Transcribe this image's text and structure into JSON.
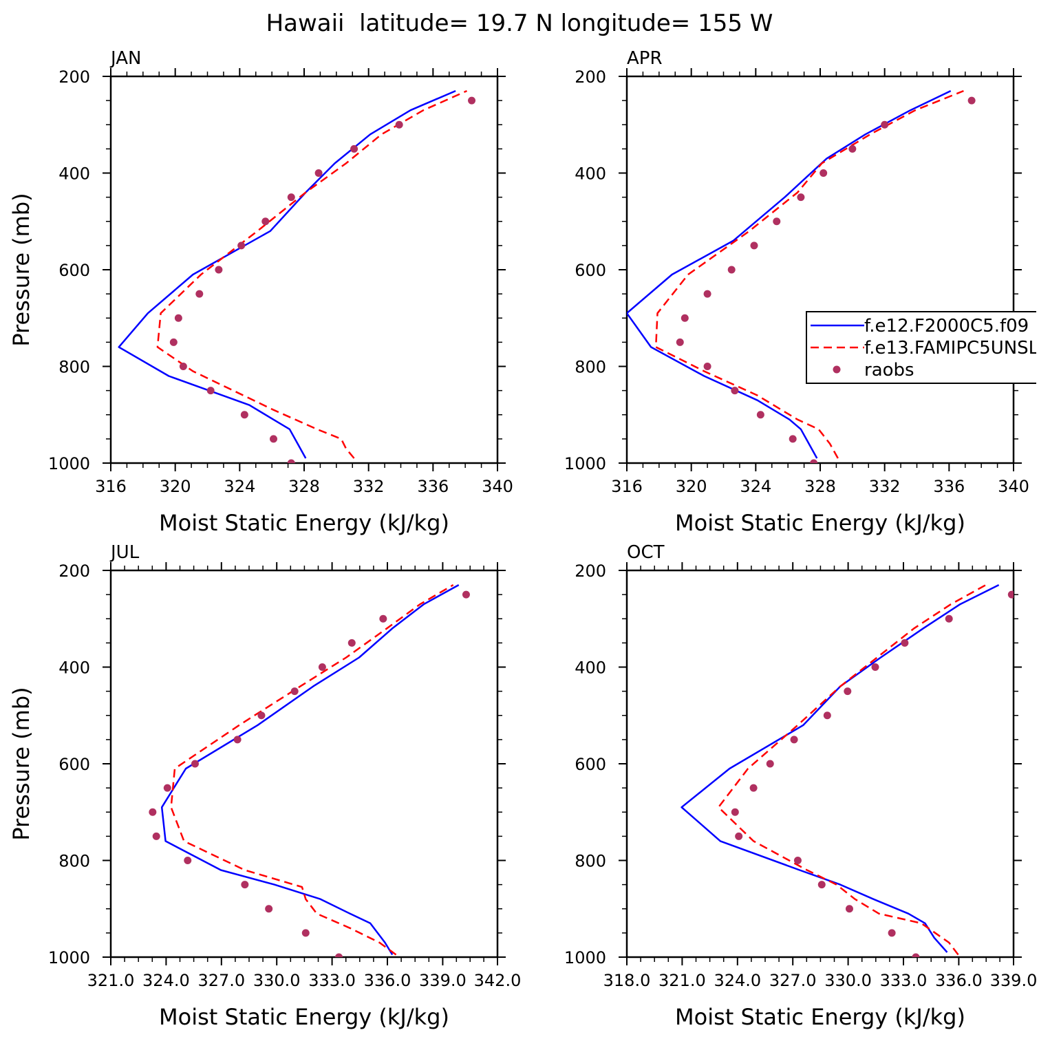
{
  "title": "Hawaii  latitude= 19.7 N longitude= 155 W",
  "legend": [
    {
      "label": "f.e12.F2000C5.f09",
      "color": "#0000ff",
      "dashed": false
    },
    {
      "label": "f.e13.FAMIPC5UNSL",
      "color": "#ff0000",
      "dashed": true
    },
    {
      "label": "raobs",
      "color": "#b03060",
      "dashed": false
    }
  ],
  "chart_data": [
    {
      "type": "line",
      "panel": "JAN",
      "xlabel": "Moist Static Energy (kJ/kg)",
      "ylabel": "Pressure (mb)",
      "xlim": [
        316,
        340
      ],
      "ylim": [
        1000,
        200
      ],
      "xticks": [
        316,
        320,
        324,
        328,
        332,
        336,
        340
      ],
      "xticklabels": [
        "316",
        "320",
        "324",
        "328",
        "332",
        "336",
        "340"
      ],
      "yticks": [
        200,
        400,
        600,
        800,
        1000
      ],
      "yticklabels": [
        "200",
        "400",
        "600",
        "800",
        "1000"
      ],
      "series": [
        {
          "name": "f.e12.F2000C5.f09",
          "style": "solid",
          "y": [
            990,
            960,
            930,
            910,
            880,
            850,
            820,
            760,
            690,
            610,
            520,
            440,
            380,
            320,
            270,
            230
          ],
          "values": [
            328.1,
            327.6,
            327.1,
            326.1,
            324.6,
            322.1,
            319.6,
            316.5,
            318.3,
            321.1,
            325.9,
            328.1,
            329.9,
            332.1,
            334.6,
            337.4
          ]
        },
        {
          "name": "f.e13.FAMIPC5UNSL",
          "style": "dashed",
          "y": [
            990,
            970,
            950,
            930,
            890,
            850,
            810,
            760,
            690,
            610,
            520,
            440,
            380,
            320,
            270,
            230
          ],
          "values": [
            331.1,
            330.6,
            330.3,
            328.8,
            326.1,
            323.6,
            321.1,
            318.9,
            319.1,
            321.6,
            325.1,
            328.1,
            330.6,
            332.8,
            335.4,
            338.1
          ]
        },
        {
          "name": "raobs",
          "style": "markers",
          "y": [
            1000,
            950,
            900,
            850,
            800,
            750,
            700,
            650,
            600,
            550,
            500,
            450,
            400,
            350,
            300,
            250
          ],
          "values": [
            327.2,
            326.1,
            324.3,
            322.2,
            320.5,
            319.9,
            320.2,
            321.5,
            322.7,
            324.1,
            325.6,
            327.2,
            328.9,
            331.1,
            333.9,
            338.4
          ]
        }
      ]
    },
    {
      "type": "line",
      "panel": "APR",
      "xlabel": "Moist Static Energy (kJ/kg)",
      "ylabel": "Pressure (mb)",
      "xlim": [
        316,
        340
      ],
      "ylim": [
        1000,
        200
      ],
      "xticks": [
        316,
        320,
        324,
        328,
        332,
        336,
        340
      ],
      "xticklabels": [
        "316",
        "320",
        "324",
        "328",
        "332",
        "336",
        "340"
      ],
      "yticks": [
        200,
        400,
        600,
        800,
        1000
      ],
      "yticklabels": [
        "200",
        "400",
        "600",
        "800",
        "1000"
      ],
      "series": [
        {
          "name": "f.e12.F2000C5.f09",
          "style": "solid",
          "y": [
            990,
            960,
            930,
            910,
            870,
            820,
            760,
            690,
            610,
            540,
            450,
            370,
            320,
            270,
            230
          ],
          "values": [
            327.8,
            327.3,
            326.8,
            326.1,
            324.1,
            320.8,
            317.5,
            316.0,
            318.8,
            322.6,
            325.8,
            328.4,
            330.8,
            333.6,
            336.1
          ]
        },
        {
          "name": "f.e13.FAMIPC5UNSL",
          "style": "dashed",
          "y": [
            990,
            960,
            930,
            910,
            860,
            810,
            760,
            690,
            610,
            520,
            440,
            380,
            320,
            270,
            230
          ],
          "values": [
            329.1,
            328.6,
            327.9,
            326.6,
            324.1,
            320.8,
            317.8,
            317.9,
            319.8,
            323.6,
            326.6,
            328.1,
            331.1,
            333.9,
            336.9
          ]
        },
        {
          "name": "raobs",
          "style": "markers",
          "y": [
            1000,
            950,
            900,
            850,
            800,
            750,
            700,
            650,
            600,
            550,
            500,
            450,
            400,
            350,
            300,
            250
          ],
          "values": [
            327.6,
            326.3,
            324.3,
            322.7,
            321.0,
            319.3,
            319.6,
            321.0,
            322.5,
            323.9,
            325.3,
            326.8,
            328.2,
            330.0,
            332.0,
            337.4
          ]
        }
      ]
    },
    {
      "type": "line",
      "panel": "JUL",
      "xlabel": "Moist Static Energy (kJ/kg)",
      "ylabel": "Pressure (mb)",
      "xlim": [
        321.03,
        342.0
      ],
      "ylim": [
        1000,
        200
      ],
      "xticks": [
        321.03,
        324.03,
        327.03,
        330.03,
        333.03,
        336.03,
        339.03,
        342.0
      ],
      "xticklabels": [
        "321.0",
        "324.0",
        "327.0",
        "330.0",
        "333.0",
        "336.0",
        "339.0",
        "342.0"
      ],
      "yticks": [
        200,
        400,
        600,
        800,
        1000
      ],
      "yticklabels": [
        "200",
        "400",
        "600",
        "800",
        "1000"
      ],
      "series": [
        {
          "name": "f.e12.F2000C5.f09",
          "style": "solid",
          "y": [
            995,
            970,
            930,
            910,
            880,
            850,
            820,
            760,
            690,
            610,
            520,
            440,
            380,
            320,
            270,
            230
          ],
          "values": [
            336.3,
            335.9,
            335.1,
            334.0,
            332.4,
            329.9,
            327.0,
            324.0,
            323.8,
            325.1,
            329.0,
            332.0,
            334.5,
            336.3,
            338.0,
            339.9
          ]
        },
        {
          "name": "f.e13.FAMIPC5UNSL",
          "style": "dashed",
          "y": [
            995,
            970,
            940,
            910,
            880,
            855,
            820,
            760,
            690,
            610,
            520,
            440,
            380,
            320,
            270,
            230
          ],
          "values": [
            336.5,
            335.6,
            334.0,
            332.2,
            331.6,
            331.4,
            328.3,
            325.0,
            324.3,
            324.5,
            328.0,
            331.3,
            333.8,
            336.0,
            337.8,
            339.6
          ]
        },
        {
          "name": "raobs",
          "style": "markers",
          "y": [
            1000,
            950,
            900,
            850,
            800,
            750,
            700,
            650,
            600,
            550,
            500,
            450,
            400,
            350,
            300,
            250
          ],
          "values": [
            333.4,
            331.6,
            329.6,
            328.3,
            325.2,
            323.5,
            323.3,
            324.1,
            325.6,
            327.9,
            329.2,
            331.0,
            332.5,
            334.1,
            335.8,
            340.3
          ]
        }
      ]
    },
    {
      "type": "line",
      "panel": "OCT",
      "xlabel": "Moist Static Energy (kJ/kg)",
      "ylabel": "Pressure (mb)",
      "xlim": [
        318.03,
        339.0
      ],
      "ylim": [
        1000,
        200
      ],
      "xticks": [
        318.03,
        321.03,
        324.03,
        327.03,
        330.03,
        333.03,
        336.03,
        339.0
      ],
      "xticklabels": [
        "318.0",
        "321.0",
        "324.0",
        "327.0",
        "330.0",
        "333.0",
        "336.0",
        "339.0"
      ],
      "yticks": [
        200,
        400,
        600,
        800,
        1000
      ],
      "yticklabels": [
        "200",
        "400",
        "600",
        "800",
        "1000"
      ],
      "series": [
        {
          "name": "f.e12.F2000C5.f09",
          "style": "solid",
          "y": [
            990,
            960,
            930,
            910,
            880,
            850,
            820,
            760,
            690,
            610,
            520,
            440,
            380,
            320,
            270,
            230
          ],
          "values": [
            335.4,
            334.7,
            334.2,
            333.3,
            331.4,
            329.6,
            327.4,
            323.1,
            321.0,
            323.6,
            327.6,
            329.6,
            331.8,
            334.1,
            336.1,
            338.2
          ]
        },
        {
          "name": "f.e13.FAMIPC5UNSL",
          "style": "dashed",
          "y": [
            995,
            970,
            930,
            910,
            880,
            850,
            820,
            760,
            690,
            610,
            520,
            440,
            380,
            320,
            270,
            230
          ],
          "values": [
            336.0,
            335.5,
            334.0,
            331.7,
            330.4,
            329.4,
            327.8,
            324.9,
            323.0,
            324.6,
            327.3,
            329.6,
            331.6,
            333.6,
            335.6,
            337.5
          ]
        },
        {
          "name": "raobs",
          "style": "markers",
          "y": [
            1000,
            950,
            900,
            850,
            800,
            750,
            700,
            650,
            600,
            550,
            500,
            450,
            400,
            350,
            300,
            250
          ],
          "values": [
            333.7,
            332.4,
            330.1,
            328.6,
            327.3,
            324.1,
            323.9,
            324.9,
            325.8,
            327.1,
            328.9,
            330.0,
            331.5,
            333.1,
            335.5,
            338.9
          ]
        }
      ]
    }
  ]
}
